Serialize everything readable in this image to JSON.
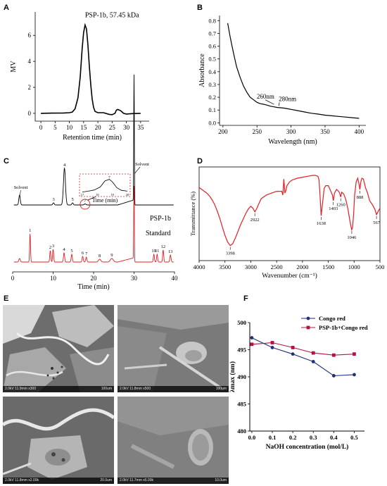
{
  "panels": {
    "A": "A",
    "B": "B",
    "C": "C",
    "D": "D",
    "E": "E",
    "F": "F"
  },
  "chart_data": [
    {
      "id": "A",
      "type": "line",
      "annotation": "PSP-1b, 57.45 kDa",
      "xlabel": "Retention time (min)",
      "ylabel": "MV",
      "xlim": [
        -2,
        38
      ],
      "ylim": [
        -0.6,
        7.8
      ],
      "xticks": [
        0,
        5,
        10,
        15,
        20,
        25,
        30,
        35
      ],
      "yticks": [
        0,
        2,
        4,
        6
      ],
      "x": [
        0,
        4,
        8,
        10,
        11,
        12,
        13,
        13.8,
        14.5,
        15,
        15.5,
        16,
        16.5,
        17,
        17.5,
        18,
        18.5,
        19,
        20,
        22,
        24,
        25,
        26,
        26.5,
        27,
        28,
        29,
        30,
        32,
        35
      ],
      "y": [
        0.0,
        0.02,
        0.03,
        0.05,
        0.1,
        0.35,
        1.2,
        2.8,
        5.0,
        6.2,
        6.8,
        6.5,
        5.3,
        3.6,
        2.2,
        1.1,
        0.45,
        0.15,
        0.05,
        0.05,
        -0.08,
        -0.1,
        0.0,
        0.25,
        0.3,
        0.2,
        0.0,
        -0.05,
        -0.02,
        0.0
      ]
    },
    {
      "id": "B",
      "type": "line",
      "xlabel": "Wavelength (nm)",
      "ylabel": "Absorbance",
      "xlim": [
        195,
        410
      ],
      "ylim": [
        -0.02,
        0.84
      ],
      "xticks": [
        200,
        250,
        300,
        350,
        400
      ],
      "yticks": [
        0.0,
        0.1,
        0.2,
        0.3,
        0.4,
        0.5,
        0.6,
        0.7,
        0.8
      ],
      "annotations": [
        "260nm",
        "280nm"
      ],
      "x": [
        207,
        210,
        213,
        217,
        220,
        225,
        230,
        235,
        240,
        245,
        250,
        255,
        260,
        265,
        270,
        275,
        280,
        285,
        290,
        295,
        300,
        310,
        320,
        330,
        340,
        350,
        360,
        370,
        380,
        390,
        400
      ],
      "y": [
        0.78,
        0.69,
        0.61,
        0.51,
        0.44,
        0.36,
        0.29,
        0.24,
        0.2,
        0.18,
        0.16,
        0.15,
        0.145,
        0.138,
        0.13,
        0.125,
        0.12,
        0.118,
        0.115,
        0.11,
        0.105,
        0.095,
        0.085,
        0.075,
        0.068,
        0.06,
        0.055,
        0.05,
        0.045,
        0.04,
        0.035
      ]
    },
    {
      "id": "C",
      "type": "line",
      "xlabel": "Time (min)",
      "xlim": [
        0,
        40
      ],
      "xticks": [
        0,
        10,
        20,
        30,
        40
      ],
      "labels": {
        "solvent_left": "Solvent",
        "solvent_right": "Solvent",
        "psp": "PSP-1b",
        "standard": "Standard"
      },
      "series": [
        {
          "name": "PSP-1b",
          "color": "#000000",
          "peaks": [
            {
              "x": 1.7,
              "h": 14,
              "w": 0.25
            },
            {
              "x": 10.1,
              "h": 3,
              "w": 0.25
            },
            {
              "x": 12.8,
              "h": 52,
              "w": 0.35
            },
            {
              "x": 14.8,
              "h": 3,
              "w": 0.25
            },
            {
              "x": 17.9,
              "h": 1.5,
              "w": 0.3
            },
            {
              "x": 30.0,
              "h": 185,
              "w": 0.1
            }
          ],
          "peak_labels": [
            {
              "x": 10.1,
              "text": "3"
            },
            {
              "x": 12.8,
              "text": "4"
            },
            {
              "x": 14.8,
              "text": "5"
            },
            {
              "x": 17.9,
              "text": "7"
            }
          ]
        },
        {
          "name": "Standard",
          "color": "#e31e24",
          "peaks": [
            {
              "x": 1.7,
              "h": 5,
              "w": 0.25
            },
            {
              "x": 4.3,
              "h": 40,
              "w": 0.15
            },
            {
              "x": 9.3,
              "h": 16,
              "w": 0.18
            },
            {
              "x": 10.0,
              "h": 18,
              "w": 0.18
            },
            {
              "x": 12.7,
              "h": 13,
              "w": 0.2
            },
            {
              "x": 14.6,
              "h": 11,
              "w": 0.2
            },
            {
              "x": 17.3,
              "h": 8,
              "w": 0.2
            },
            {
              "x": 18.2,
              "h": 7,
              "w": 0.2
            },
            {
              "x": 21.5,
              "h": 4,
              "w": 0.4
            },
            {
              "x": 24.5,
              "h": 5,
              "w": 0.5
            },
            {
              "x": 30.0,
              "h": 108,
              "w": 0.1
            },
            {
              "x": 34.9,
              "h": 11,
              "w": 0.18
            },
            {
              "x": 35.7,
              "h": 11,
              "w": 0.18
            },
            {
              "x": 37.2,
              "h": 17,
              "w": 0.18
            },
            {
              "x": 39.0,
              "h": 10,
              "w": 0.2
            }
          ],
          "peak_labels": [
            {
              "x": 4.3,
              "text": "1"
            },
            {
              "x": 9.3,
              "text": "2"
            },
            {
              "x": 10.0,
              "text": "3"
            },
            {
              "x": 12.7,
              "text": "4"
            },
            {
              "x": 14.6,
              "text": "5"
            },
            {
              "x": 17.3,
              "text": "6"
            },
            {
              "x": 18.2,
              "text": "7"
            },
            {
              "x": 21.5,
              "text": "8"
            },
            {
              "x": 24.5,
              "text": "9"
            },
            {
              "x": 34.9,
              "text": "10"
            },
            {
              "x": 35.7,
              "text": "11"
            },
            {
              "x": 37.2,
              "text": "12"
            },
            {
              "x": 39.0,
              "text": "13"
            }
          ]
        }
      ],
      "inset": {
        "xlabel": "Time (min)",
        "xticks": [
          "17",
          "18",
          "19",
          "20"
        ],
        "peak_label": "7",
        "x": [
          17.0,
          17.4,
          17.8,
          18.2,
          18.5,
          18.8,
          19.0,
          19.3,
          19.6,
          20.0
        ],
        "y": [
          0.1,
          0.15,
          0.22,
          0.4,
          0.75,
          0.85,
          0.7,
          0.35,
          0.2,
          0.15
        ]
      }
    },
    {
      "id": "D",
      "type": "line",
      "xlabel": "Wavenumber (cm⁻¹)",
      "ylabel": "Transmittance (%)",
      "color": "#e31e24",
      "xlim": [
        4000,
        500
      ],
      "xticks": [
        4000,
        3500,
        3000,
        2500,
        2000,
        1500,
        1000,
        500
      ],
      "annotations": [
        {
          "x": 3398,
          "text": "3398"
        },
        {
          "x": 2922,
          "text": "2922"
        },
        {
          "x": 1638,
          "text": "1638"
        },
        {
          "x": 1403,
          "text": "1403"
        },
        {
          "x": 1260,
          "text": "1260"
        },
        {
          "x": 1046,
          "text": "1046"
        },
        {
          "x": 888,
          "text": "888"
        },
        {
          "x": 567,
          "text": "567"
        }
      ],
      "x": [
        4000,
        3950,
        3900,
        3850,
        3800,
        3750,
        3700,
        3650,
        3600,
        3550,
        3500,
        3450,
        3398,
        3350,
        3300,
        3250,
        3200,
        3150,
        3100,
        3050,
        3000,
        2960,
        2922,
        2880,
        2850,
        2800,
        2700,
        2600,
        2500,
        2400,
        2380,
        2360,
        2340,
        2320,
        2300,
        2250,
        2200,
        2100,
        2000,
        1900,
        1800,
        1750,
        1700,
        1680,
        1660,
        1638,
        1610,
        1580,
        1550,
        1500,
        1450,
        1420,
        1403,
        1380,
        1340,
        1300,
        1280,
        1260,
        1240,
        1200,
        1160,
        1120,
        1090,
        1060,
        1046,
        1030,
        1010,
        990,
        960,
        930,
        910,
        888,
        870,
        850,
        820,
        780,
        740,
        700,
        650,
        600,
        567,
        540,
        500
      ],
      "y": [
        0.78,
        0.76,
        0.74,
        0.72,
        0.69,
        0.65,
        0.6,
        0.53,
        0.45,
        0.36,
        0.27,
        0.2,
        0.16,
        0.18,
        0.24,
        0.31,
        0.38,
        0.44,
        0.5,
        0.55,
        0.58,
        0.56,
        0.52,
        0.56,
        0.6,
        0.66,
        0.7,
        0.72,
        0.74,
        0.74,
        0.7,
        0.87,
        0.72,
        0.75,
        0.8,
        0.84,
        0.86,
        0.88,
        0.89,
        0.9,
        0.91,
        0.91,
        0.9,
        0.86,
        0.7,
        0.48,
        0.62,
        0.77,
        0.8,
        0.8,
        0.74,
        0.7,
        0.64,
        0.72,
        0.76,
        0.74,
        0.72,
        0.68,
        0.73,
        0.71,
        0.65,
        0.55,
        0.45,
        0.36,
        0.33,
        0.36,
        0.5,
        0.7,
        0.84,
        0.88,
        0.83,
        0.76,
        0.84,
        0.88,
        0.87,
        0.78,
        0.72,
        0.64,
        0.6,
        0.55,
        0.49,
        0.52,
        0.56
      ]
    },
    {
      "id": "F",
      "type": "line",
      "xlabel": "NaOH concentration (mol/L)",
      "ylabel": "λmax (nm)",
      "xlim": [
        -0.01,
        0.55
      ],
      "ylim": [
        480,
        500
      ],
      "xticks": [
        0.0,
        0.1,
        0.2,
        0.3,
        0.4,
        0.5
      ],
      "yticks": [
        480,
        485,
        490,
        495,
        500
      ],
      "legend": "top-right",
      "x": [
        0.0,
        0.1,
        0.2,
        0.3,
        0.4,
        0.5
      ],
      "series": [
        {
          "name": "Congo red",
          "color": "#1f2f7a",
          "marker": "circle",
          "values": [
            497.2,
            495.4,
            494.2,
            492.8,
            490.2,
            490.4
          ]
        },
        {
          "name": "PSP-1b+Congo red",
          "color": "#b01446",
          "marker": "square",
          "values": [
            496.0,
            496.3,
            495.4,
            494.4,
            494.0,
            494.2
          ]
        }
      ]
    }
  ],
  "sem": {
    "images": [
      {
        "left": "2.0kV 11.9mm x300",
        "right": "100um"
      },
      {
        "left": "2.0kV 11.8mm x500",
        "right": "100um"
      },
      {
        "left": "2.0kV 11.8mm x2.00k",
        "right": "20.0um"
      },
      {
        "left": "2.0kV 11.7mm x5.00k",
        "right": "10.0um"
      }
    ]
  }
}
